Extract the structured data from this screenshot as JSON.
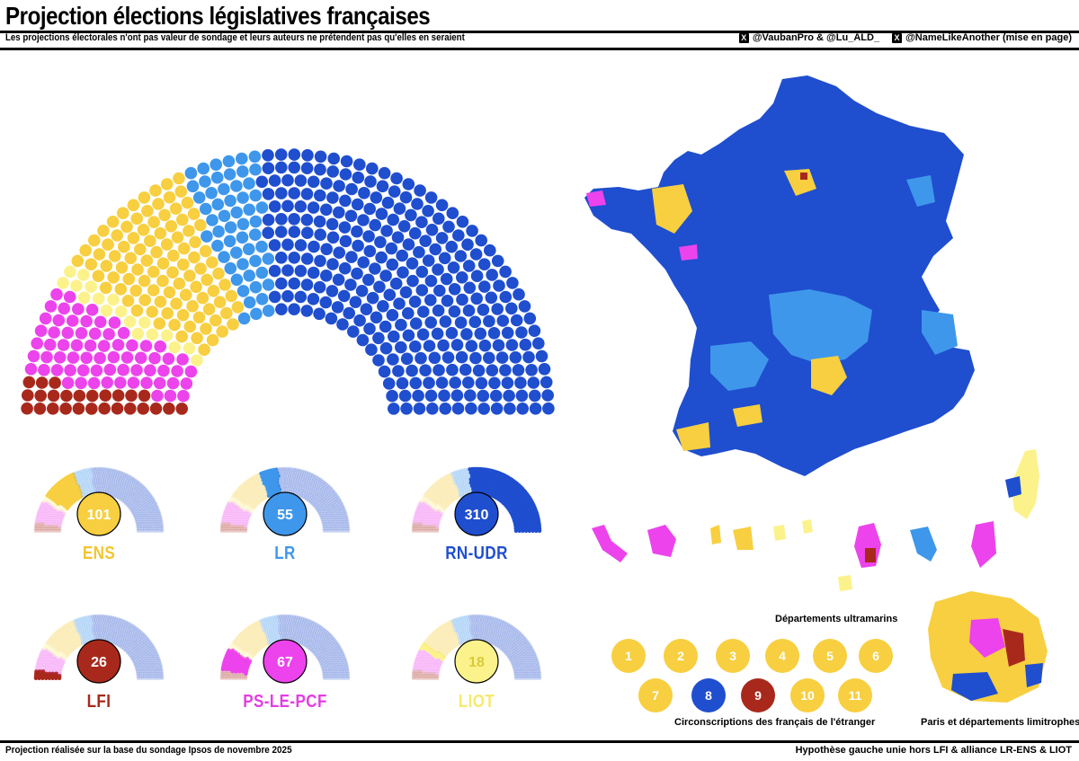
{
  "header": {
    "title": "Projection élections législatives françaises",
    "disclaimer": "Les projections électorales n'ont pas valeur de sondage et leurs auteurs ne prétendent pas qu'elles en seraient",
    "credit_1": "@VaubanPro & @Lu_ALD_",
    "credit_2": "@NameLikeAnother (mise en page)",
    "x_icon_glyph": "X"
  },
  "footer": {
    "left": "Projection réalisée sur la base du sondage Ipsos de novembre 2025",
    "right": "Hypothèse gauche unie hors LFI & alliance LR-ENS & LIOT"
  },
  "chart_data": [
    {
      "type": "parliament",
      "total": 577,
      "series": [
        {
          "name": "LFI",
          "value": 26,
          "color": "#a8291c"
        },
        {
          "name": "PS-LE-PCF",
          "value": 67,
          "color": "#ec43ec"
        },
        {
          "name": "LIOT",
          "value": 18,
          "color": "#fcf28c"
        },
        {
          "name": "ENS",
          "value": 101,
          "color": "#f7cf40"
        },
        {
          "name": "LR",
          "value": 55,
          "color": "#3e97eb"
        },
        {
          "name": "RN-UDR",
          "value": 310,
          "color": "#1f4ecf"
        }
      ]
    }
  ],
  "parties": [
    {
      "name": "ENS",
      "seats": "101",
      "color": "#f7cf40",
      "text_color": "#f2c530",
      "num_color": "#ffffff"
    },
    {
      "name": "LR",
      "seats": "55",
      "color": "#3e97eb",
      "text_color": "#3e97eb",
      "num_color": "#ffffff"
    },
    {
      "name": "RN-UDR",
      "seats": "310",
      "color": "#1f4ecf",
      "text_color": "#1f4ecf",
      "num_color": "#ffffff"
    },
    {
      "name": "LFI",
      "seats": "26",
      "color": "#a8291c",
      "text_color": "#a8291c",
      "num_color": "#ffffff"
    },
    {
      "name": "PS-LE-PCF",
      "seats": "67",
      "color": "#ec43ec",
      "text_color": "#e23ee2",
      "num_color": "#ffffff"
    },
    {
      "name": "LIOT",
      "seats": "18",
      "color": "#fcf28c",
      "text_color": "#f5ea6e",
      "num_color": "#d9c93a"
    }
  ],
  "map": {
    "outremer_label": "Départements ultramarins",
    "etranger_label": "Circonscriptions des français de l'étranger",
    "paris_label": "Paris et départements limitrophes",
    "circonscriptions": [
      {
        "num": "1",
        "color": "#f7cf40"
      },
      {
        "num": "2",
        "color": "#f7cf40"
      },
      {
        "num": "3",
        "color": "#f7cf40"
      },
      {
        "num": "4",
        "color": "#f7cf40"
      },
      {
        "num": "5",
        "color": "#f7cf40"
      },
      {
        "num": "6",
        "color": "#f7cf40"
      },
      {
        "num": "7",
        "color": "#f7cf40"
      },
      {
        "num": "8",
        "color": "#1f4ecf"
      },
      {
        "num": "9",
        "color": "#a8291c"
      },
      {
        "num": "10",
        "color": "#f7cf40"
      },
      {
        "num": "11",
        "color": "#f7cf40"
      }
    ]
  }
}
